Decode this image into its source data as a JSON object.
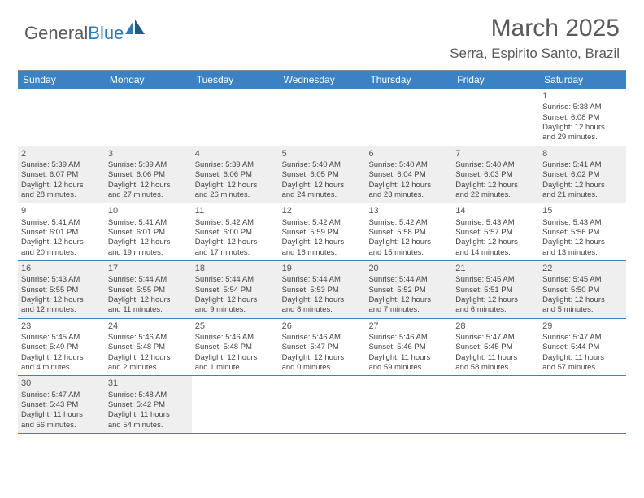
{
  "logo": {
    "text_dark": "General",
    "text_blue": "Blue"
  },
  "title": "March 2025",
  "location": "Serra, Espirito Santo, Brazil",
  "dayHeaders": [
    "Sunday",
    "Monday",
    "Tuesday",
    "Wednesday",
    "Thursday",
    "Friday",
    "Saturday"
  ],
  "colors": {
    "header_bg": "#3b82c4",
    "header_text": "#ffffff",
    "border": "#3b82c4",
    "shaded_bg": "#efefef",
    "text_gray": "#5a5a5a",
    "logo_blue": "#2b7bbf"
  },
  "weeks": [
    [
      {
        "empty": true
      },
      {
        "empty": true
      },
      {
        "empty": true
      },
      {
        "empty": true
      },
      {
        "empty": true
      },
      {
        "empty": true
      },
      {
        "day": "1",
        "sunrise": "Sunrise: 5:38 AM",
        "sunset": "Sunset: 6:08 PM",
        "daylight1": "Daylight: 12 hours",
        "daylight2": "and 29 minutes."
      }
    ],
    [
      {
        "day": "2",
        "shaded": true,
        "sunrise": "Sunrise: 5:39 AM",
        "sunset": "Sunset: 6:07 PM",
        "daylight1": "Daylight: 12 hours",
        "daylight2": "and 28 minutes."
      },
      {
        "day": "3",
        "shaded": true,
        "sunrise": "Sunrise: 5:39 AM",
        "sunset": "Sunset: 6:06 PM",
        "daylight1": "Daylight: 12 hours",
        "daylight2": "and 27 minutes."
      },
      {
        "day": "4",
        "shaded": true,
        "sunrise": "Sunrise: 5:39 AM",
        "sunset": "Sunset: 6:06 PM",
        "daylight1": "Daylight: 12 hours",
        "daylight2": "and 26 minutes."
      },
      {
        "day": "5",
        "shaded": true,
        "sunrise": "Sunrise: 5:40 AM",
        "sunset": "Sunset: 6:05 PM",
        "daylight1": "Daylight: 12 hours",
        "daylight2": "and 24 minutes."
      },
      {
        "day": "6",
        "shaded": true,
        "sunrise": "Sunrise: 5:40 AM",
        "sunset": "Sunset: 6:04 PM",
        "daylight1": "Daylight: 12 hours",
        "daylight2": "and 23 minutes."
      },
      {
        "day": "7",
        "shaded": true,
        "sunrise": "Sunrise: 5:40 AM",
        "sunset": "Sunset: 6:03 PM",
        "daylight1": "Daylight: 12 hours",
        "daylight2": "and 22 minutes."
      },
      {
        "day": "8",
        "shaded": true,
        "sunrise": "Sunrise: 5:41 AM",
        "sunset": "Sunset: 6:02 PM",
        "daylight1": "Daylight: 12 hours",
        "daylight2": "and 21 minutes."
      }
    ],
    [
      {
        "day": "9",
        "sunrise": "Sunrise: 5:41 AM",
        "sunset": "Sunset: 6:01 PM",
        "daylight1": "Daylight: 12 hours",
        "daylight2": "and 20 minutes."
      },
      {
        "day": "10",
        "sunrise": "Sunrise: 5:41 AM",
        "sunset": "Sunset: 6:01 PM",
        "daylight1": "Daylight: 12 hours",
        "daylight2": "and 19 minutes."
      },
      {
        "day": "11",
        "sunrise": "Sunrise: 5:42 AM",
        "sunset": "Sunset: 6:00 PM",
        "daylight1": "Daylight: 12 hours",
        "daylight2": "and 17 minutes."
      },
      {
        "day": "12",
        "sunrise": "Sunrise: 5:42 AM",
        "sunset": "Sunset: 5:59 PM",
        "daylight1": "Daylight: 12 hours",
        "daylight2": "and 16 minutes."
      },
      {
        "day": "13",
        "sunrise": "Sunrise: 5:42 AM",
        "sunset": "Sunset: 5:58 PM",
        "daylight1": "Daylight: 12 hours",
        "daylight2": "and 15 minutes."
      },
      {
        "day": "14",
        "sunrise": "Sunrise: 5:43 AM",
        "sunset": "Sunset: 5:57 PM",
        "daylight1": "Daylight: 12 hours",
        "daylight2": "and 14 minutes."
      },
      {
        "day": "15",
        "sunrise": "Sunrise: 5:43 AM",
        "sunset": "Sunset: 5:56 PM",
        "daylight1": "Daylight: 12 hours",
        "daylight2": "and 13 minutes."
      }
    ],
    [
      {
        "day": "16",
        "shaded": true,
        "sunrise": "Sunrise: 5:43 AM",
        "sunset": "Sunset: 5:55 PM",
        "daylight1": "Daylight: 12 hours",
        "daylight2": "and 12 minutes."
      },
      {
        "day": "17",
        "shaded": true,
        "sunrise": "Sunrise: 5:44 AM",
        "sunset": "Sunset: 5:55 PM",
        "daylight1": "Daylight: 12 hours",
        "daylight2": "and 11 minutes."
      },
      {
        "day": "18",
        "shaded": true,
        "sunrise": "Sunrise: 5:44 AM",
        "sunset": "Sunset: 5:54 PM",
        "daylight1": "Daylight: 12 hours",
        "daylight2": "and 9 minutes."
      },
      {
        "day": "19",
        "shaded": true,
        "sunrise": "Sunrise: 5:44 AM",
        "sunset": "Sunset: 5:53 PM",
        "daylight1": "Daylight: 12 hours",
        "daylight2": "and 8 minutes."
      },
      {
        "day": "20",
        "shaded": true,
        "sunrise": "Sunrise: 5:44 AM",
        "sunset": "Sunset: 5:52 PM",
        "daylight1": "Daylight: 12 hours",
        "daylight2": "and 7 minutes."
      },
      {
        "day": "21",
        "shaded": true,
        "sunrise": "Sunrise: 5:45 AM",
        "sunset": "Sunset: 5:51 PM",
        "daylight1": "Daylight: 12 hours",
        "daylight2": "and 6 minutes."
      },
      {
        "day": "22",
        "shaded": true,
        "sunrise": "Sunrise: 5:45 AM",
        "sunset": "Sunset: 5:50 PM",
        "daylight1": "Daylight: 12 hours",
        "daylight2": "and 5 minutes."
      }
    ],
    [
      {
        "day": "23",
        "sunrise": "Sunrise: 5:45 AM",
        "sunset": "Sunset: 5:49 PM",
        "daylight1": "Daylight: 12 hours",
        "daylight2": "and 4 minutes."
      },
      {
        "day": "24",
        "sunrise": "Sunrise: 5:46 AM",
        "sunset": "Sunset: 5:48 PM",
        "daylight1": "Daylight: 12 hours",
        "daylight2": "and 2 minutes."
      },
      {
        "day": "25",
        "sunrise": "Sunrise: 5:46 AM",
        "sunset": "Sunset: 5:48 PM",
        "daylight1": "Daylight: 12 hours",
        "daylight2": "and 1 minute."
      },
      {
        "day": "26",
        "sunrise": "Sunrise: 5:46 AM",
        "sunset": "Sunset: 5:47 PM",
        "daylight1": "Daylight: 12 hours",
        "daylight2": "and 0 minutes."
      },
      {
        "day": "27",
        "sunrise": "Sunrise: 5:46 AM",
        "sunset": "Sunset: 5:46 PM",
        "daylight1": "Daylight: 11 hours",
        "daylight2": "and 59 minutes."
      },
      {
        "day": "28",
        "sunrise": "Sunrise: 5:47 AM",
        "sunset": "Sunset: 5:45 PM",
        "daylight1": "Daylight: 11 hours",
        "daylight2": "and 58 minutes."
      },
      {
        "day": "29",
        "sunrise": "Sunrise: 5:47 AM",
        "sunset": "Sunset: 5:44 PM",
        "daylight1": "Daylight: 11 hours",
        "daylight2": "and 57 minutes."
      }
    ],
    [
      {
        "day": "30",
        "shaded": true,
        "sunrise": "Sunrise: 5:47 AM",
        "sunset": "Sunset: 5:43 PM",
        "daylight1": "Daylight: 11 hours",
        "daylight2": "and 56 minutes."
      },
      {
        "day": "31",
        "shaded": true,
        "sunrise": "Sunrise: 5:48 AM",
        "sunset": "Sunset: 5:42 PM",
        "daylight1": "Daylight: 11 hours",
        "daylight2": "and 54 minutes."
      },
      {
        "empty": true
      },
      {
        "empty": true
      },
      {
        "empty": true
      },
      {
        "empty": true
      },
      {
        "empty": true
      }
    ]
  ]
}
